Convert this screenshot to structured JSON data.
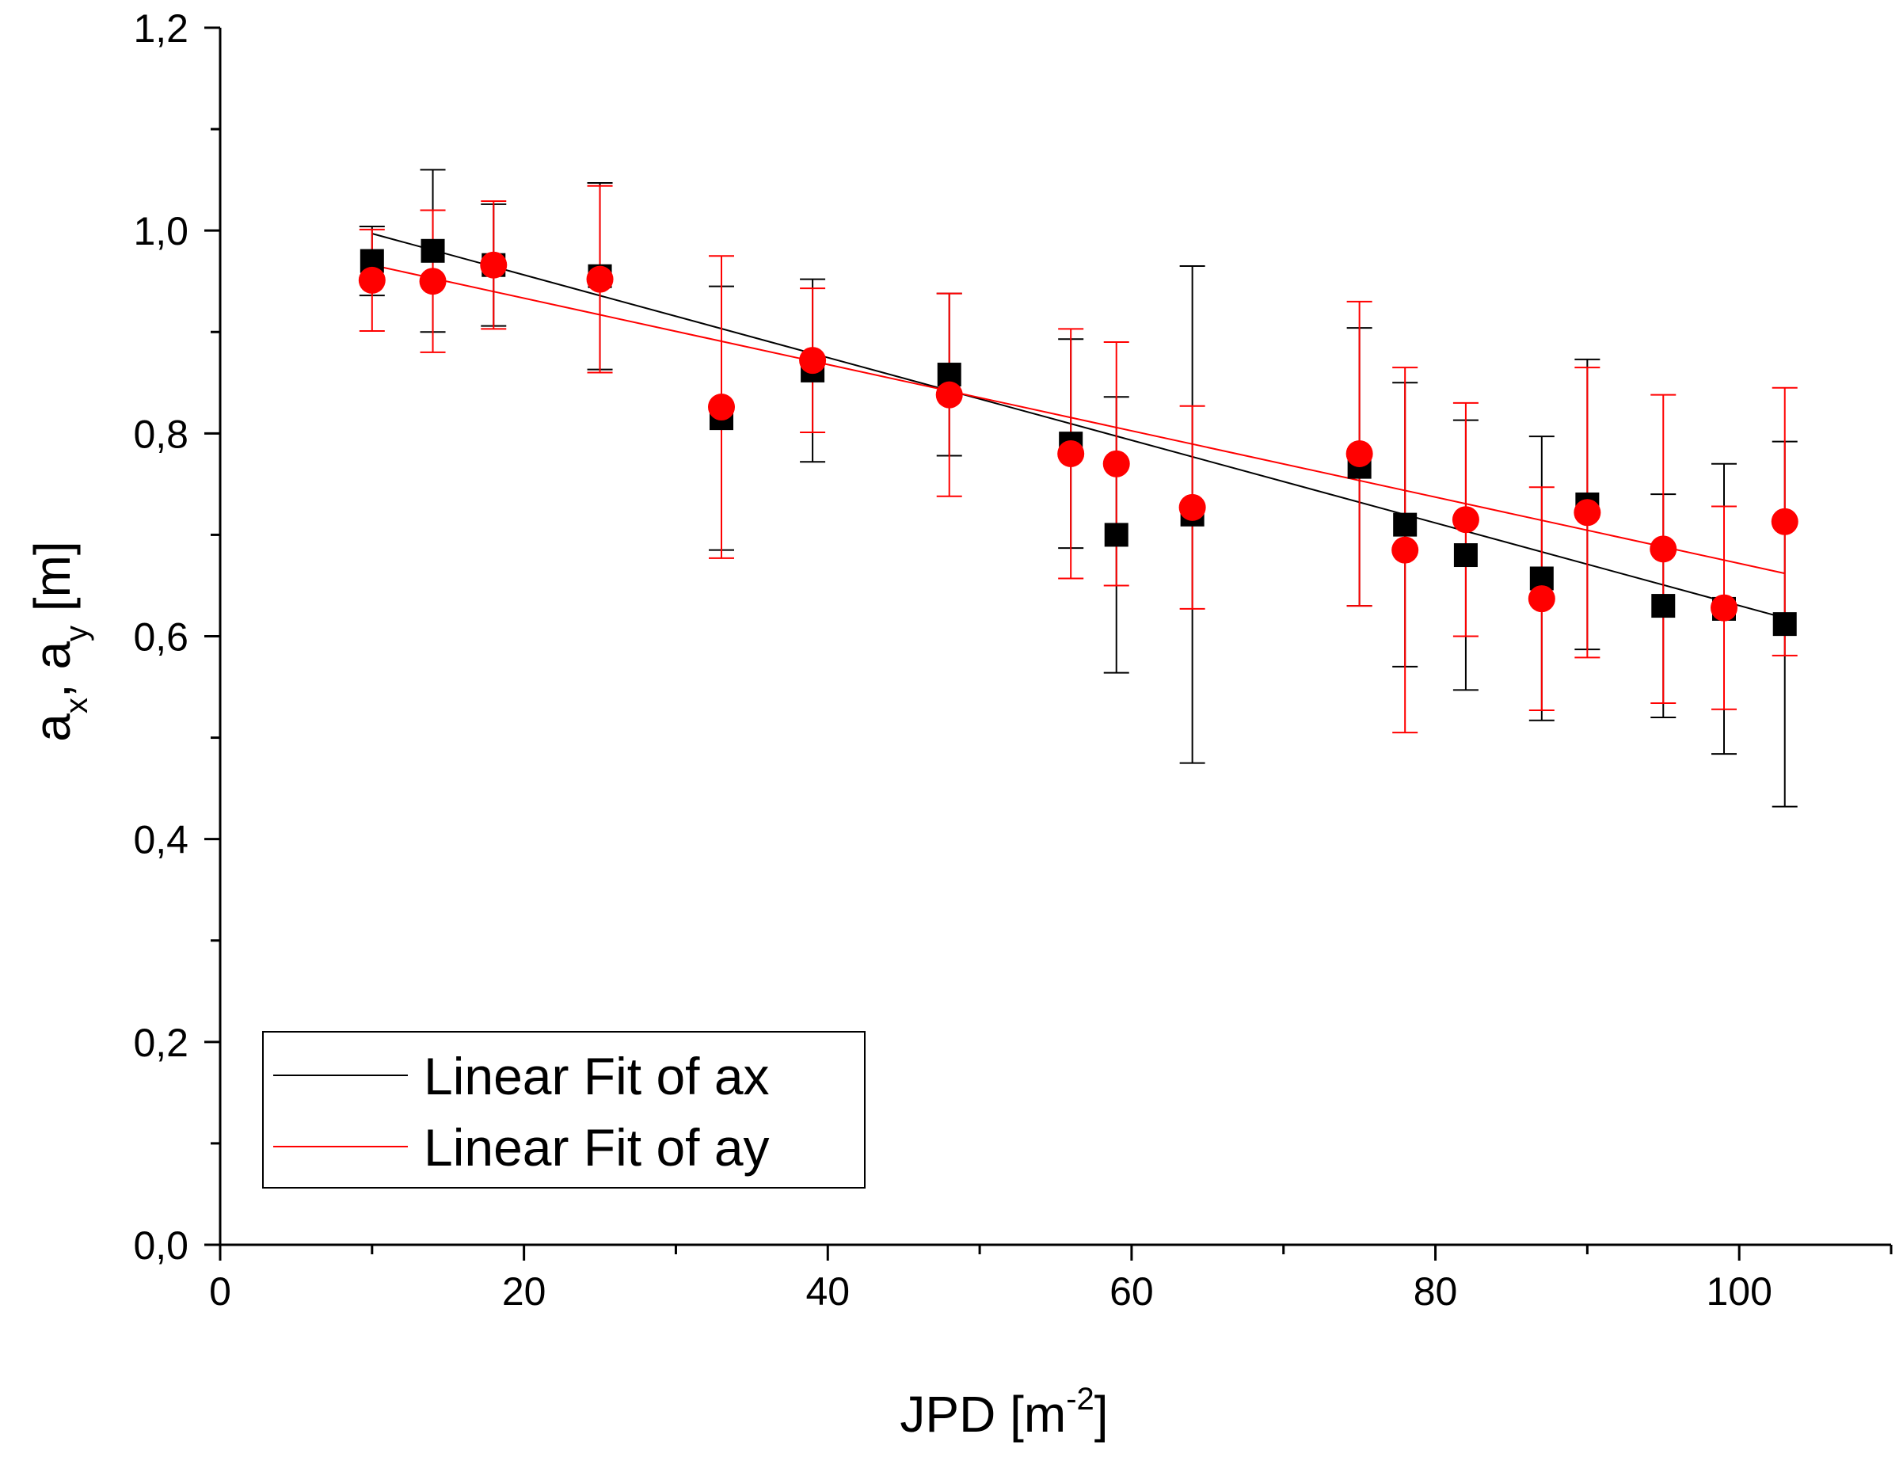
{
  "chart_data": {
    "type": "scatter",
    "x_axis": {
      "label_main": "JPD [m",
      "label_sup": "-2",
      "label_end": "]",
      "range": [
        0,
        110
      ],
      "ticks": [
        0,
        20,
        40,
        60,
        80,
        100
      ],
      "tick_labels": [
        "0",
        "20",
        "40",
        "60",
        "80",
        "100"
      ],
      "minor_step": 10
    },
    "y_axis": {
      "label_a1": "a",
      "label_sub1": "x",
      "label_sep": ", a",
      "label_sub2": "y",
      "label_unit": " [m]",
      "range": [
        0,
        1.2
      ],
      "ticks": [
        0,
        0.2,
        0.4,
        0.6,
        0.8,
        1.0,
        1.2
      ],
      "tick_labels": [
        "0,0",
        "0,2",
        "0,4",
        "0,6",
        "0,8",
        "1,0",
        "1,2"
      ],
      "minor_step": 0.1
    },
    "grid": false,
    "legend_position": "bottom-left",
    "series": [
      {
        "name": "ax",
        "marker": "square",
        "color": "#000000",
        "x": [
          10,
          14,
          18,
          25,
          33,
          39,
          48,
          56,
          59,
          64,
          75,
          78,
          82,
          87,
          90,
          95,
          99,
          103
        ],
        "y": [
          0.97,
          0.98,
          0.966,
          0.955,
          0.815,
          0.862,
          0.858,
          0.79,
          0.7,
          0.72,
          0.767,
          0.71,
          0.68,
          0.657,
          0.73,
          0.63,
          0.627,
          0.612
        ],
        "err": [
          0.034,
          0.08,
          0.06,
          0.092,
          0.13,
          0.09,
          0.08,
          0.103,
          0.136,
          0.245,
          0.137,
          0.14,
          0.133,
          0.14,
          0.143,
          0.11,
          0.143,
          0.18
        ]
      },
      {
        "name": "ay",
        "marker": "circle",
        "color": "#ff0000",
        "x": [
          10,
          14,
          18,
          25,
          33,
          39,
          48,
          56,
          59,
          64,
          75,
          78,
          82,
          87,
          90,
          95,
          99,
          103
        ],
        "y": [
          0.951,
          0.95,
          0.966,
          0.952,
          0.826,
          0.872,
          0.838,
          0.78,
          0.77,
          0.727,
          0.78,
          0.685,
          0.715,
          0.637,
          0.722,
          0.686,
          0.628,
          0.713
        ],
        "err": [
          0.05,
          0.07,
          0.063,
          0.092,
          0.149,
          0.071,
          0.1,
          0.123,
          0.12,
          0.1,
          0.15,
          0.18,
          0.115,
          0.11,
          0.143,
          0.152,
          0.1,
          0.132
        ]
      }
    ],
    "fits": [
      {
        "name": "Linear Fit of ax",
        "color": "#000000",
        "x_range": [
          10,
          103
        ],
        "y_range": [
          0.997,
          0.618
        ]
      },
      {
        "name": "Linear Fit of ay",
        "color": "#ff0000",
        "x_range": [
          10,
          103
        ],
        "y_range": [
          0.966,
          0.662
        ]
      }
    ],
    "legend": [
      "Linear Fit of ax",
      "Linear Fit of ay"
    ]
  }
}
